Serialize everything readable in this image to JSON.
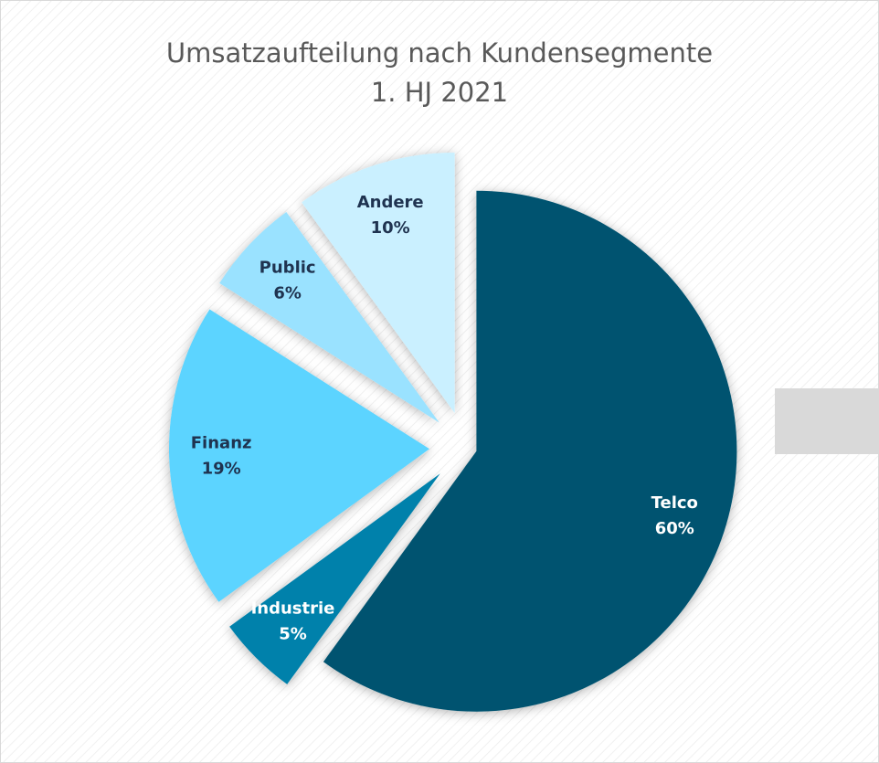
{
  "chart_data": {
    "type": "pie",
    "title": "Umsatzaufteilung nach Kundensegmente",
    "subtitle": "1. HJ 2021",
    "categories": [
      "Telco",
      "Industrie",
      "Finanz",
      "Public",
      "Andere"
    ],
    "values": [
      60,
      5,
      19,
      6,
      10
    ],
    "value_labels": [
      "60%",
      "5%",
      "19%",
      "6%",
      "10%"
    ],
    "colors": [
      "#03536f",
      "#0181ab",
      "#5cd4ff",
      "#9ae2ff",
      "#caf0ff"
    ],
    "label_colors": [
      "#ffffff",
      "#ffffff",
      "#1f3350",
      "#1f3350",
      "#1f3350"
    ]
  }
}
